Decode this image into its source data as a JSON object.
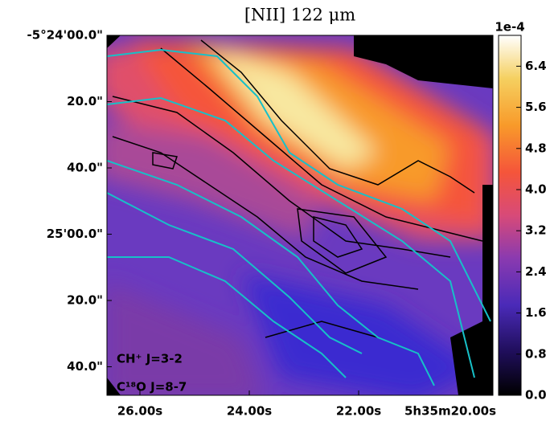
{
  "chart_data": {
    "type": "image-map",
    "title": "[NII] 122 μm",
    "x_tick_labels": [
      "26.00s",
      "24.00s",
      "22.00s",
      "5h35m20.00s"
    ],
    "y_tick_labels": [
      "-5°24'00.0\"",
      "20.0\"",
      "40.0\"",
      "25'00.0\"",
      "20.0\"",
      "40.0\""
    ],
    "colorbar": {
      "offset_label": "1e-4",
      "ylim": [
        0,
        7
      ],
      "yticks": [
        {
          "value": 0,
          "label": "0.0"
        },
        {
          "value": 0.8,
          "label": "0.8"
        },
        {
          "value": 1.6,
          "label": "1.6"
        },
        {
          "value": 2.4,
          "label": "2.4"
        },
        {
          "value": 3.2,
          "label": "3.2"
        },
        {
          "value": 4,
          "label": "4.0"
        },
        {
          "value": 4.8,
          "label": "4.8"
        },
        {
          "value": 5.6,
          "label": "5.6"
        },
        {
          "value": 6.4,
          "label": "6.4"
        }
      ]
    },
    "legend": [
      {
        "name": "CH⁺ J=3-2",
        "color": "#000000"
      },
      {
        "name": "C¹⁸O J=8-7",
        "color": "#17c0c8"
      }
    ]
  }
}
